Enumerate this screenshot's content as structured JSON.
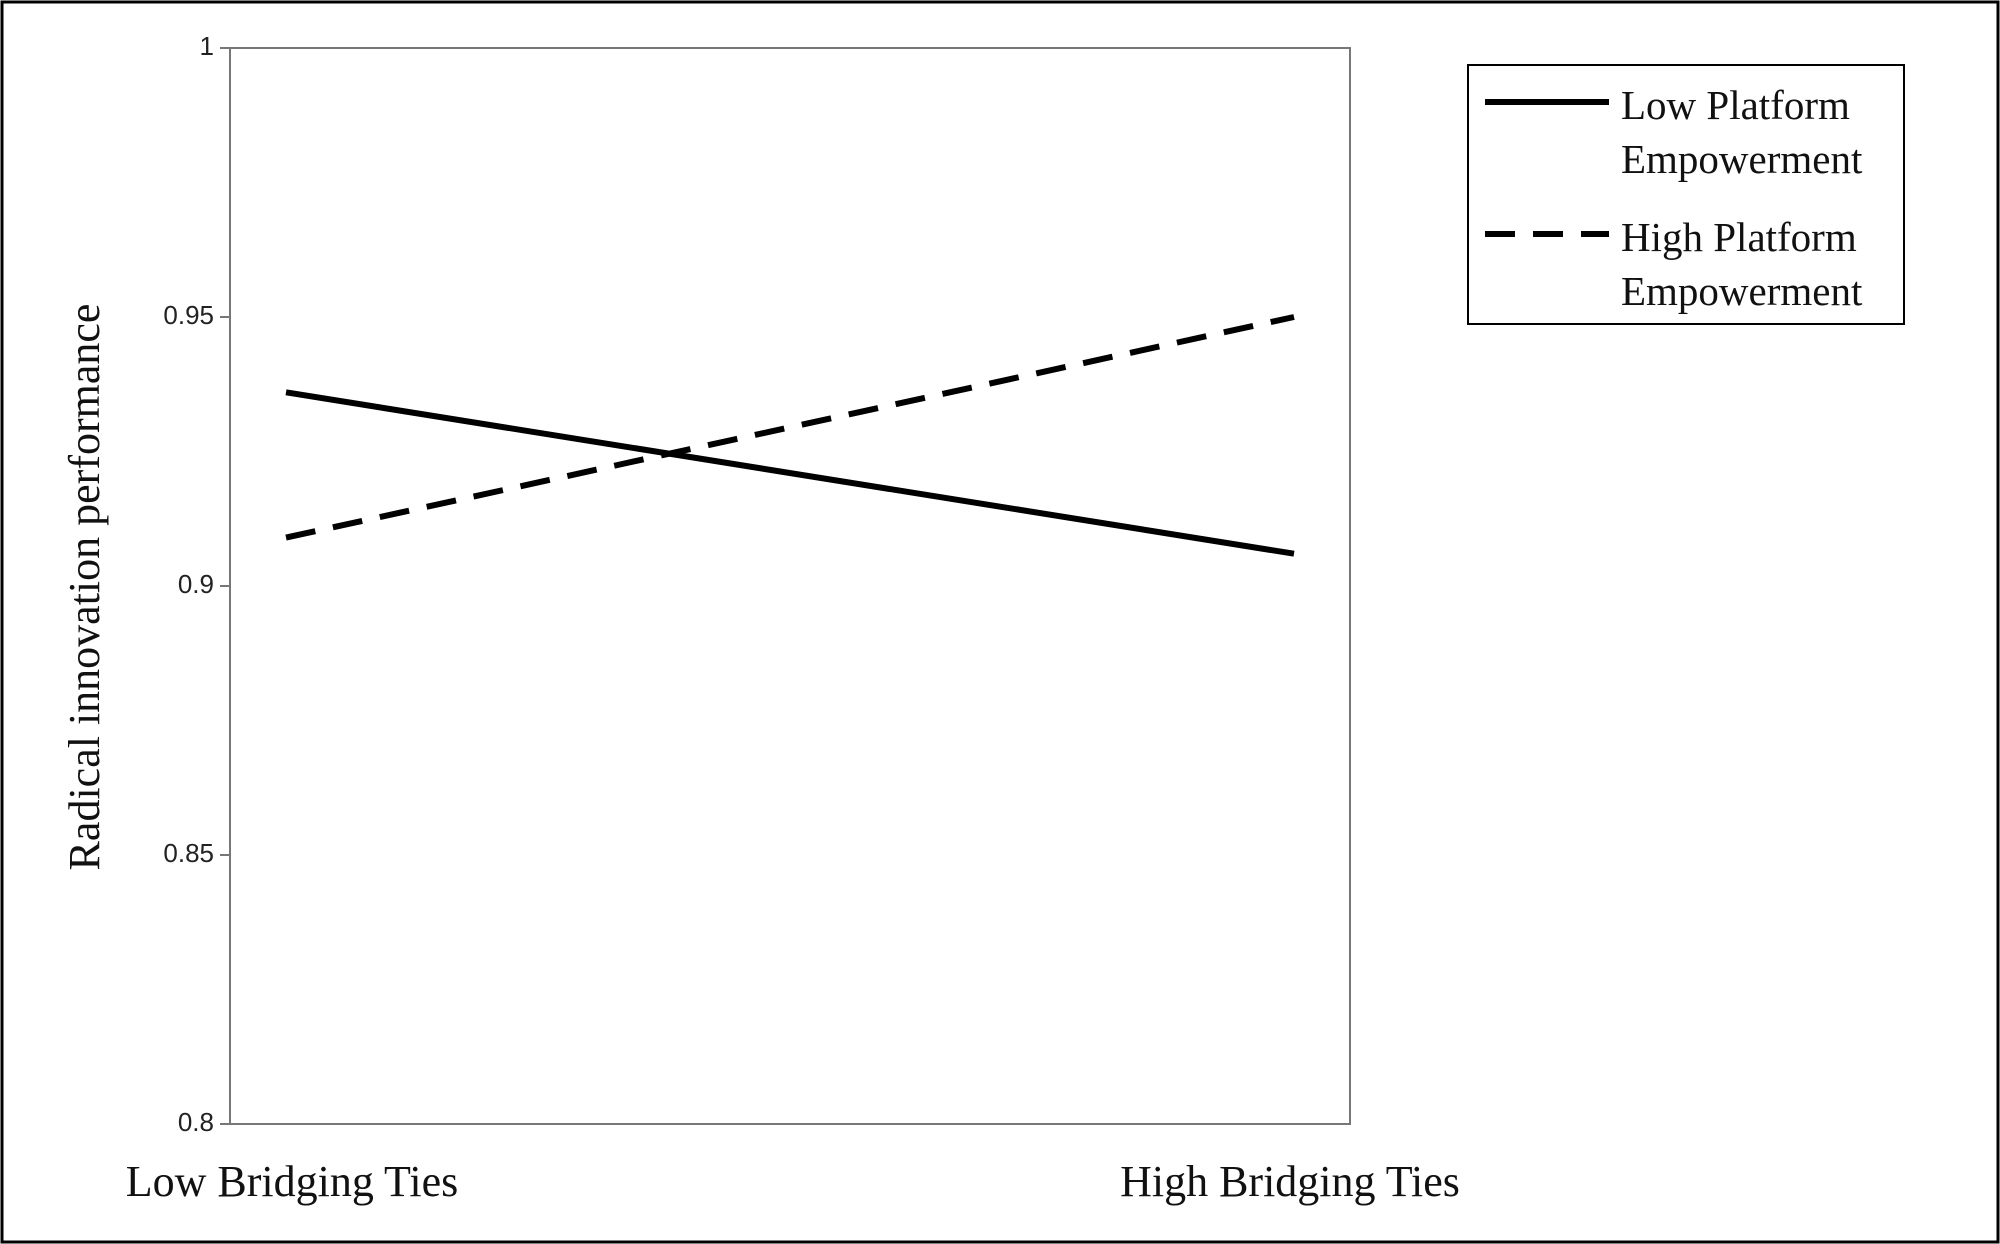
{
  "chart_data": {
    "type": "line",
    "ylabel": "Radical innovation performance",
    "categories": [
      "Low Bridging Ties",
      "High Bridging Ties"
    ],
    "series": [
      {
        "name": "Low Platform Empowerment",
        "color": "#000000",
        "style": "solid",
        "values": [
          0.936,
          0.906
        ]
      },
      {
        "name": "High Platform Empowerment",
        "color": "#000000",
        "style": "dashed",
        "values": [
          0.909,
          0.95
        ]
      }
    ],
    "ylim": [
      0.8,
      1
    ],
    "yticks": [
      0.8,
      0.85,
      0.9,
      0.95,
      1
    ],
    "grid": false,
    "legend": "upper right"
  }
}
